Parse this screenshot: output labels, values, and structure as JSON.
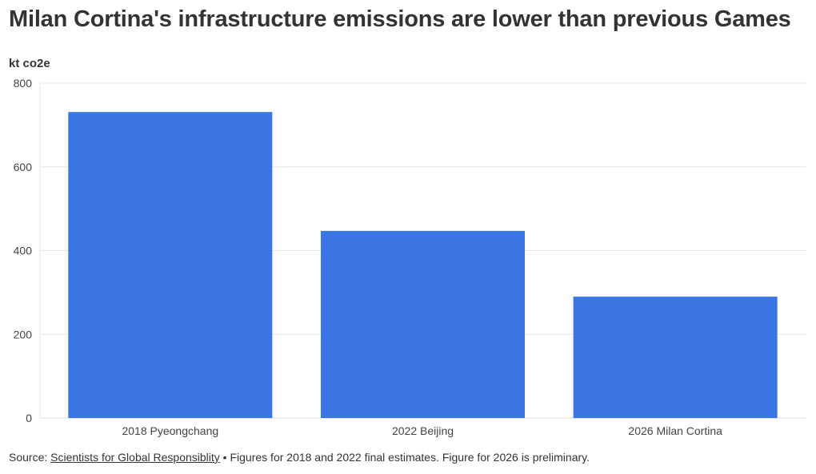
{
  "title": "Milan Cortina's infrastructure emissions are lower than previous Games",
  "colors": {
    "bar": "#3a75e4",
    "grid": "#e6e6e6",
    "axis": "#dddddd"
  },
  "chart_data": {
    "type": "bar",
    "title": "Milan Cortina's infrastructure emissions are lower than previous Games",
    "xlabel": "",
    "ylabel": "kt co2e",
    "categories": [
      "2018 Pyeongchang",
      "2022 Beijing",
      "2026 Milan Cortina"
    ],
    "values": [
      731,
      447,
      290
    ],
    "ylim": [
      0,
      800
    ],
    "yticks": [
      0,
      200,
      400,
      600,
      800
    ],
    "ytick_labels": [
      "0",
      "200",
      "400",
      "600",
      "800"
    ],
    "grid": true,
    "legend": "none"
  },
  "source": {
    "prefix": "Source: ",
    "link_text": "Scientists for Global Responsiblity",
    "note": " • Figures for 2018 and 2022 final estimates. Figure for 2026 is preliminary."
  }
}
